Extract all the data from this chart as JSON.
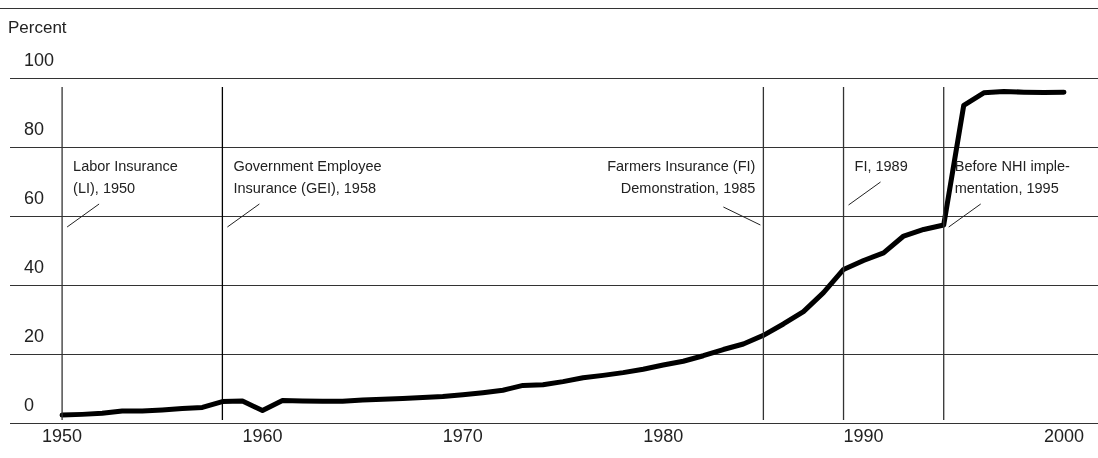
{
  "chart_data": {
    "type": "line",
    "ylabel": "Percent",
    "x": [
      1950,
      1951,
      1952,
      1953,
      1954,
      1955,
      1956,
      1957,
      1958,
      1959,
      1960,
      1961,
      1962,
      1963,
      1964,
      1965,
      1966,
      1967,
      1968,
      1969,
      1970,
      1971,
      1972,
      1973,
      1974,
      1975,
      1976,
      1977,
      1978,
      1979,
      1980,
      1981,
      1982,
      1983,
      1984,
      1985,
      1986,
      1987,
      1988,
      1989,
      1990,
      1991,
      1992,
      1993,
      1994,
      1995,
      1996,
      1997,
      1998,
      1999,
      2000
    ],
    "series": [
      {
        "color": "#000000",
        "values": [
          2.3,
          2.5,
          2.8,
          3.5,
          3.5,
          3.8,
          4.2,
          4.5,
          6.2,
          6.4,
          3.6,
          6.5,
          6.4,
          6.3,
          6.3,
          6.7,
          6.9,
          7.1,
          7.4,
          7.7,
          8.2,
          8.8,
          9.5,
          10.9,
          11.1,
          12.0,
          13.1,
          13.8,
          14.6,
          15.6,
          16.8,
          17.9,
          19.5,
          21.3,
          22.9,
          25.4,
          28.7,
          32.3,
          37.8,
          44.5,
          47.1,
          49.3,
          54.2,
          56.1,
          57.4,
          92.1,
          95.7,
          96.1,
          95.9,
          95.8,
          95.9
        ]
      }
    ],
    "xlim": [
      1947.4,
      2001.7
    ],
    "xticks": [
      1950,
      1960,
      1970,
      1980,
      1990,
      2000
    ],
    "ylim": [
      0,
      100
    ],
    "yticks": [
      0,
      20,
      40,
      60,
      80,
      100
    ],
    "grid": "y",
    "ref_lines": [
      {
        "axis": "x",
        "value": 1950,
        "label": "Labor Insurance\n(LI), 1950",
        "color": "#333333"
      },
      {
        "axis": "x",
        "value": 1958,
        "label": "Government Employee\nInsurance (GEI), 1958",
        "color": "#000000"
      },
      {
        "axis": "x",
        "value": 1985,
        "label": "Farmers Insurance (FI)\nDemonstration, 1985",
        "color": "#333333"
      },
      {
        "axis": "x",
        "value": 1989,
        "label": "FI, 1989",
        "color": "#333333"
      },
      {
        "axis": "x",
        "value": 1994,
        "label": "Before NHI imple-\nmentation, 1995",
        "color": "#333333"
      }
    ]
  }
}
